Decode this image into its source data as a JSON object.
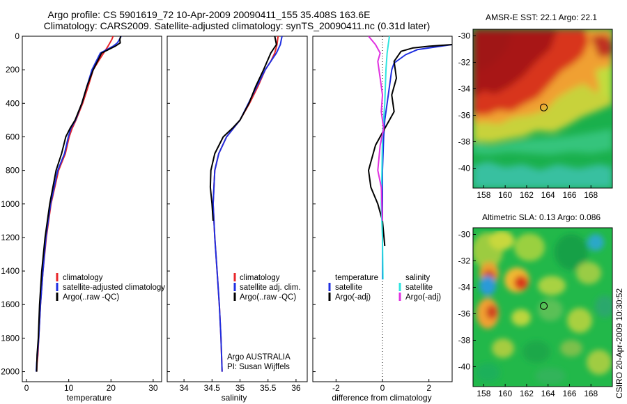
{
  "header": {
    "line1": "Argo profile: CS 5901619_72 10-Apr-2009 20090411_155 35.408S 163.6E",
    "line2": "Climatology: CARS2009. Satellite-adjusted climatology: synTS_20090411.nc (0.31d later)"
  },
  "credit": {
    "agency": "Argo AUSTRALIA",
    "pi": "PI: Susan Wijffels",
    "stamp": "CSIRO 20-Apr-2009 10:30:52"
  },
  "colors": {
    "climatology": "#e8262a",
    "satellite": "#1f2fe0",
    "argo": "#000000",
    "salinity_satellite": "#2ee4e0",
    "salinity_argo": "#e030e0",
    "marker": "#000000"
  },
  "maps": {
    "sst": {
      "title": "AMSR-E SST: 22.1  Argo: 22.1",
      "x_ticks": [
        "158",
        "160",
        "162",
        "164",
        "166",
        "168"
      ],
      "y_ticks": [
        "-30",
        "-32",
        "-34",
        "-36",
        "-38",
        "-40"
      ],
      "xlim": [
        157,
        170
      ],
      "ylim": [
        -41.5,
        -29.5
      ],
      "argo_position": {
        "lon": 163.6,
        "lat": -35.408
      }
    },
    "sla": {
      "title": "Altimetric SLA: 0.13  Argo: 0.086",
      "x_ticks": [
        "158",
        "160",
        "162",
        "164",
        "166",
        "168"
      ],
      "y_ticks": [
        "-30",
        "-32",
        "-34",
        "-36",
        "-38",
        "-40"
      ],
      "xlim": [
        157,
        170
      ],
      "ylim": [
        -41.5,
        -29.5
      ],
      "argo_position": {
        "lon": 163.6,
        "lat": -35.408
      }
    }
  },
  "chart_data": [
    {
      "type": "line",
      "xlabel": "temperature",
      "xlim": [
        -1,
        32
      ],
      "ylim": [
        0,
        2060
      ],
      "y_reversed": true,
      "x_ticks": [
        "0",
        "10",
        "20",
        "30"
      ],
      "y_ticks": [
        "0",
        "200",
        "400",
        "600",
        "800",
        "1000",
        "1200",
        "1400",
        "1600",
        "1800",
        "2000"
      ],
      "legend": [
        "climatology",
        "satellite-adjusted climatology",
        "Argo(..raw -QC)"
      ],
      "series": [
        {
          "name": "climatology",
          "color_key": "climatology",
          "x": [
            20.5,
            20.2,
            19.3,
            17.0,
            15.8,
            14.6,
            13.3,
            11.7,
            10.8,
            10.1,
            9.2,
            7.6,
            5.8,
            4.7,
            3.9,
            3.3,
            2.9,
            2.7,
            2.5,
            2.4
          ],
          "y": [
            0,
            20,
            60,
            150,
            200,
            300,
            400,
            500,
            550,
            600,
            700,
            800,
            1000,
            1200,
            1400,
            1600,
            1800,
            1900,
            1950,
            2000
          ]
        },
        {
          "name": "satellite-adjusted climatology",
          "color_key": "satellite",
          "x": [
            22.4,
            22.0,
            21.5,
            20.5,
            17.5,
            15.5,
            14.3,
            13.1,
            11.6,
            10.5,
            9.9,
            9.0,
            7.4,
            5.7,
            4.6,
            3.9,
            3.3,
            2.9,
            2.6,
            2.4,
            2.3
          ],
          "y": [
            0,
            20,
            40,
            60,
            100,
            200,
            300,
            400,
            500,
            550,
            600,
            700,
            800,
            1000,
            1200,
            1400,
            1600,
            1800,
            1900,
            1950,
            2000
          ]
        },
        {
          "name": "Argo(..raw -QC)",
          "color_key": "argo",
          "x": [
            22.3,
            22.1,
            22.2,
            21.0,
            17.8,
            15.8,
            14.3,
            13.1,
            11.5,
            10.3,
            9.3,
            8.3,
            7.0,
            5.5,
            4.4,
            3.6,
            3.1,
            2.8,
            2.5,
            2.4
          ],
          "y": [
            0,
            20,
            40,
            60,
            100,
            200,
            300,
            400,
            500,
            550,
            600,
            700,
            800,
            1000,
            1200,
            1400,
            1600,
            1800,
            1900,
            2000
          ]
        }
      ]
    },
    {
      "type": "line",
      "xlabel": "salinity",
      "xlim": [
        33.7,
        36.2
      ],
      "ylim": [
        0,
        2060
      ],
      "y_reversed": true,
      "x_ticks": [
        "34",
        "34.5",
        "35",
        "35.5",
        "36"
      ],
      "legend": [
        "climatology",
        "satellite adj. clim.",
        "Argo(..raw -QC)"
      ],
      "series": [
        {
          "name": "climatology",
          "color_key": "climatology",
          "x": [
            35.68,
            35.66,
            35.62,
            35.55,
            35.45,
            35.32,
            35.17,
            35.0,
            34.88,
            34.76,
            34.62,
            34.55,
            34.52,
            34.55,
            34.59,
            34.63,
            34.66,
            34.68
          ],
          "y": [
            0,
            50,
            100,
            150,
            200,
            300,
            400,
            500,
            550,
            600,
            700,
            800,
            1000,
            1200,
            1400,
            1600,
            1800,
            2000
          ]
        },
        {
          "name": "satellite adj. clim.",
          "color_key": "satellite",
          "x": [
            35.75,
            35.72,
            35.65,
            35.55,
            35.45,
            35.3,
            35.15,
            35.0,
            34.88,
            34.76,
            34.62,
            34.55,
            34.52,
            34.55,
            34.59,
            34.63,
            34.66,
            34.68
          ],
          "y": [
            0,
            50,
            100,
            150,
            200,
            300,
            400,
            500,
            550,
            600,
            700,
            800,
            1000,
            1200,
            1400,
            1600,
            1800,
            2000
          ]
        },
        {
          "name": "Argo(..raw -QC)",
          "color_key": "argo",
          "x": [
            35.62,
            35.65,
            35.55,
            35.42,
            35.28,
            35.16,
            35.0,
            34.86,
            34.7,
            34.55,
            34.48,
            34.47,
            34.5,
            34.52
          ],
          "y": [
            0,
            50,
            100,
            200,
            300,
            400,
            500,
            550,
            600,
            700,
            800,
            900,
            1000,
            1100
          ]
        }
      ]
    },
    {
      "type": "line",
      "xlabel": "difference from climatology",
      "xlim": [
        -3,
        3
      ],
      "ylim": [
        0,
        2060
      ],
      "y_reversed": true,
      "x_ticks": [
        "-2",
        "0",
        "2"
      ],
      "legend_temperature": {
        "heading": "temperature",
        "items": [
          "satellite",
          "Argo(-adj)"
        ]
      },
      "legend_salinity": {
        "heading": "salinity",
        "items": [
          "satellite",
          "Argo(-adj)"
        ]
      },
      "series": [
        {
          "name": "satellite",
          "group": "temperature",
          "color_key": "satellite",
          "x": [
            3.0,
            1.5,
            1.0,
            0.5,
            0.4,
            0.3,
            0.2,
            0.1,
            0.05,
            0.0,
            0.0,
            0.0,
            0.0
          ],
          "y": [
            50,
            80,
            110,
            160,
            200,
            300,
            400,
            500,
            600,
            800,
            1000,
            1200,
            1450
          ]
        },
        {
          "name": "Argo(-adj)",
          "group": "temperature",
          "color_key": "argo",
          "x": [
            3.0,
            2.0,
            1.3,
            0.8,
            0.5,
            0.6,
            0.4,
            0.5,
            0.3,
            0.1,
            -0.3,
            -0.6,
            -0.5,
            -0.2,
            0.0,
            0.1
          ],
          "y": [
            50,
            60,
            70,
            90,
            150,
            250,
            350,
            450,
            500,
            550,
            650,
            800,
            900,
            1000,
            1100,
            1250
          ]
        },
        {
          "name": "satellite",
          "group": "salinity",
          "color_key": "salinity_satellite",
          "x": [
            0.3,
            0.25,
            0.2,
            0.15,
            0.1,
            0.05,
            0.0,
            -0.02,
            -0.05,
            0.0,
            0.02
          ],
          "y": [
            0,
            50,
            100,
            200,
            400,
            500,
            600,
            800,
            1000,
            1200,
            1450
          ]
        },
        {
          "name": "Argo(-adj)",
          "group": "salinity",
          "color_key": "salinity_argo",
          "x": [
            -0.6,
            -0.3,
            -0.1,
            -0.2,
            -0.1,
            0.0,
            -0.05,
            0.05,
            -0.1,
            -0.2,
            -0.05,
            0.0
          ],
          "y": [
            0,
            50,
            100,
            150,
            250,
            350,
            450,
            550,
            650,
            800,
            900,
            1100
          ]
        }
      ]
    }
  ]
}
